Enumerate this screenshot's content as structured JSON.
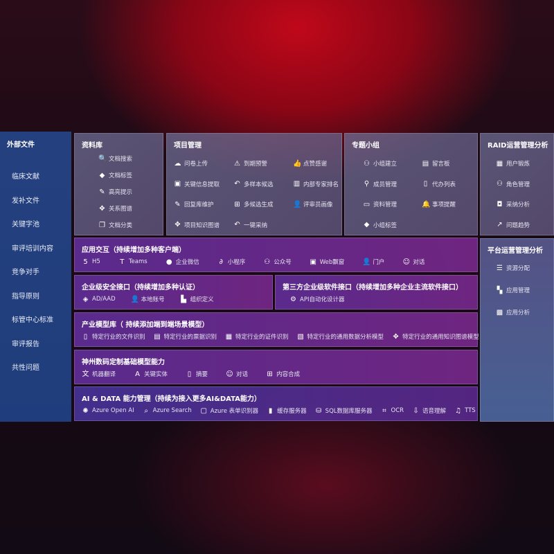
{
  "sidebar": {
    "title": "外部文件",
    "items": [
      "临床文献",
      "发补文件",
      "关键字池",
      "审评培训内容",
      "竞争对手",
      "指导原则",
      "标管中心标准",
      "审评报告",
      "共性问题"
    ]
  },
  "library": {
    "title": "资料库",
    "items": [
      {
        "icon": "doc-search-icon",
        "label": "文档搜索"
      },
      {
        "icon": "tag-icon",
        "label": "文档标签"
      },
      {
        "icon": "pen-icon",
        "label": "高亮提示"
      },
      {
        "icon": "graph-icon",
        "label": "关系图谱"
      },
      {
        "icon": "copy-icon",
        "label": "文档分类"
      }
    ]
  },
  "project": {
    "title": "项目管理",
    "items": [
      {
        "icon": "cloud-upload-icon",
        "label": "问卷上传"
      },
      {
        "icon": "alarm-icon",
        "label": "到期预警"
      },
      {
        "icon": "thumbs-up-icon",
        "label": "点赞感谢"
      },
      {
        "icon": "window-icon",
        "label": "关键信息提取"
      },
      {
        "icon": "reply-icon",
        "label": "多样本候选"
      },
      {
        "icon": "ranking-icon",
        "label": "内部专家排名"
      },
      {
        "icon": "edit-icon",
        "label": "回复库维护"
      },
      {
        "icon": "puzzle-icon",
        "label": "多候选生成"
      },
      {
        "icon": "user-icon",
        "label": "评审员画像"
      },
      {
        "icon": "graph-icon",
        "label": "项目知识图谱"
      },
      {
        "icon": "reply-icon",
        "label": "一键采纳"
      }
    ]
  },
  "group": {
    "title": "专题小组",
    "items": [
      {
        "icon": "users-icon",
        "label": "小组建立"
      },
      {
        "icon": "bbs-icon",
        "label": "留言板"
      },
      {
        "icon": "user-add-icon",
        "label": "成员管理"
      },
      {
        "icon": "clipboard-icon",
        "label": "代办列表"
      },
      {
        "icon": "folder-icon",
        "label": "资料管理"
      },
      {
        "icon": "bell-icon",
        "label": "事项提醒"
      },
      {
        "icon": "tag-icon",
        "label": "小组标签"
      }
    ]
  },
  "raid": {
    "title": "RAID运营管理分析",
    "items": [
      {
        "icon": "id-card-icon",
        "label": "用户锻炼"
      },
      {
        "icon": "users-icon",
        "label": "角色管理"
      },
      {
        "icon": "qa-icon",
        "label": "采纳分析"
      },
      {
        "icon": "trend-icon",
        "label": "问题趋势"
      }
    ]
  },
  "platform": {
    "title": "平台运营管理分析",
    "items": [
      {
        "icon": "list-icon",
        "label": "资源分配"
      },
      {
        "icon": "apps-icon",
        "label": "应用管理"
      },
      {
        "icon": "chart-icon",
        "label": "应用分析"
      }
    ]
  },
  "app_interaction": {
    "title": "应用交互（持续增加多种客户端）",
    "items": [
      {
        "icon": "html5-icon",
        "label": "H5"
      },
      {
        "icon": "teams-icon",
        "label": "Teams"
      },
      {
        "icon": "wechat-icon",
        "label": "企业微信"
      },
      {
        "icon": "miniprogram-icon",
        "label": "小程序"
      },
      {
        "icon": "users-icon",
        "label": "公众号"
      },
      {
        "icon": "window-icon",
        "label": "Web飘窗"
      },
      {
        "icon": "portal-icon",
        "label": "门户"
      },
      {
        "icon": "chat-icon",
        "label": "对话"
      }
    ]
  },
  "security": {
    "title": "企业级安全接口（持续增加多种认证）",
    "items": [
      {
        "icon": "ad-icon",
        "label": "AD/AAD"
      },
      {
        "icon": "account-icon",
        "label": "本地账号"
      },
      {
        "icon": "org-icon",
        "label": "组织定义"
      }
    ]
  },
  "third_party": {
    "title": "第三方企业级软件接口（持续增加多种企业主流软件接口）",
    "items": [
      {
        "icon": "gear-icon",
        "label": "API自动化设计器"
      }
    ]
  },
  "industry": {
    "title": "产业模型库（ 持续添加端到端场景模型）",
    "items": [
      {
        "icon": "file-icon",
        "label": "特定行业的文件识别"
      },
      {
        "icon": "receipt-icon",
        "label": "特定行业的票据识别"
      },
      {
        "icon": "id-card-icon",
        "label": "特定行业的证件识别"
      },
      {
        "icon": "image-icon",
        "label": "特定行业的通用数据分析模型"
      },
      {
        "icon": "graph-icon",
        "label": "特定行业的通用知识图谱模型"
      }
    ]
  },
  "base_model": {
    "title": "神州数码定制基础模型能力",
    "items": [
      {
        "icon": "translate-icon",
        "label": "机器翻译"
      },
      {
        "icon": "entity-icon",
        "label": "关键实体"
      },
      {
        "icon": "summary-icon",
        "label": "摘要"
      },
      {
        "icon": "chat-icon",
        "label": "对话"
      },
      {
        "icon": "compose-icon",
        "label": "内容合成"
      }
    ]
  },
  "ai_data": {
    "title": "AI & DATA 能力管理（持续为接入更多AI&DATA能力）",
    "items": [
      {
        "icon": "openai-icon",
        "label": "Azure Open AI"
      },
      {
        "icon": "search-icon",
        "label": "Azure Search"
      },
      {
        "icon": "form-icon",
        "label": "Azure 表单识别器"
      },
      {
        "icon": "cache-icon",
        "label": "缓存服务器"
      },
      {
        "icon": "database-icon",
        "label": "SQL数据库服务器"
      },
      {
        "icon": "ocr-icon",
        "label": "OCR"
      },
      {
        "icon": "speech-icon",
        "label": "语音理解"
      },
      {
        "icon": "tts-icon",
        "label": "TTS"
      }
    ]
  }
}
